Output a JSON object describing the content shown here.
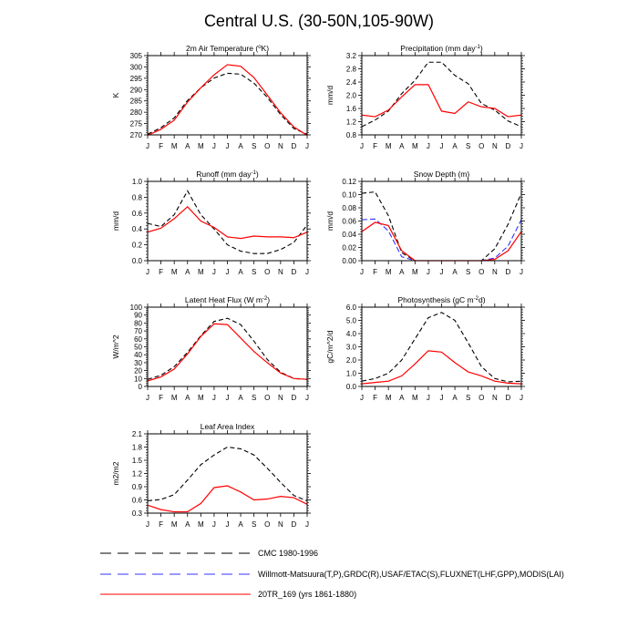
{
  "title": "Central U.S. (30-50N,105-90W)",
  "months": [
    "J",
    "F",
    "M",
    "A",
    "M",
    "J",
    "J",
    "A",
    "S",
    "O",
    "N",
    "D",
    "J"
  ],
  "colors": {
    "cmc": "#000000",
    "obs": "#3333ff",
    "model": "#ff0000"
  },
  "legend": [
    {
      "key": "cmc",
      "label": "CMC 1980-1996"
    },
    {
      "key": "obs",
      "label": "Willmott-Matsuura(T,P),GRDC(R),USAF/ETAC(S),FLUXNET(LHF,GPP),MODIS(LAI)"
    },
    {
      "key": "model",
      "label": "20TR_169 (yrs 1861-1880)"
    }
  ],
  "chart_data": [
    {
      "type": "line",
      "id": "temp",
      "title_main": "2m Air Temperature (",
      "title_sup": "o",
      "title_post": "K)",
      "ylabel": "K",
      "ylim": [
        270,
        305
      ],
      "yticks": [
        "270",
        "275",
        "280",
        "285",
        "290",
        "295",
        "300",
        "305"
      ],
      "series": [
        {
          "key": "cmc",
          "name": "CMC 1980-1996",
          "values": [
            270.3,
            273.2,
            277.5,
            285.2,
            290.8,
            295.1,
            297.2,
            296.8,
            292.8,
            286.6,
            279.0,
            272.8,
            270.3
          ]
        },
        {
          "key": "model",
          "name": "20TR_169 (yrs 1861-1880)",
          "values": [
            269.8,
            272.5,
            276.5,
            284.5,
            290.8,
            296.5,
            301.0,
            300.3,
            295.3,
            287.6,
            279.8,
            273.5,
            269.8
          ]
        }
      ]
    },
    {
      "type": "line",
      "id": "precip",
      "title_main": "Precipitation (mm day",
      "title_sup": "-1",
      "title_post": ")",
      "ylabel": "mm/d",
      "ylim": [
        0.8,
        3.2
      ],
      "yticks": [
        "0.8",
        "1.2",
        "1.6",
        "2.0",
        "2.4",
        "2.8",
        "3.2"
      ],
      "series": [
        {
          "key": "cmc",
          "name": "CMC 1980-1996",
          "values": [
            1.05,
            1.25,
            1.52,
            2.05,
            2.45,
            3.0,
            3.0,
            2.6,
            2.35,
            1.75,
            1.55,
            1.22,
            1.05
          ]
        },
        {
          "key": "model",
          "name": "20TR_169 (yrs 1861-1880)",
          "values": [
            1.4,
            1.35,
            1.55,
            1.95,
            2.32,
            2.32,
            1.52,
            1.45,
            1.8,
            1.65,
            1.6,
            1.35,
            1.4
          ]
        }
      ]
    },
    {
      "type": "line",
      "id": "runoff",
      "title_main": "Runoff (mm day",
      "title_sup": "-1",
      "title_post": ")",
      "ylabel": "mm/d",
      "ylim": [
        0.0,
        1.0
      ],
      "yticks": [
        "0.0",
        "0.2",
        "0.4",
        "0.6",
        "0.8",
        "1.0"
      ],
      "series": [
        {
          "key": "cmc",
          "name": "CMC 1980-1996",
          "values": [
            0.47,
            0.43,
            0.58,
            0.88,
            0.58,
            0.4,
            0.2,
            0.12,
            0.09,
            0.09,
            0.14,
            0.23,
            0.45
          ]
        },
        {
          "key": "model",
          "name": "20TR_169 (yrs 1861-1880)",
          "values": [
            0.36,
            0.41,
            0.53,
            0.68,
            0.5,
            0.42,
            0.3,
            0.28,
            0.31,
            0.3,
            0.3,
            0.29,
            0.36
          ]
        }
      ]
    },
    {
      "type": "line",
      "id": "snow",
      "title_main": "Snow Depth (m)",
      "title_sup": "",
      "title_post": "",
      "ylabel": "mm/d",
      "ylim": [
        0.0,
        0.12
      ],
      "yticks": [
        "0.00",
        "0.02",
        "0.04",
        "0.06",
        "0.08",
        "0.10",
        "0.12"
      ],
      "series": [
        {
          "key": "cmc",
          "name": "CMC 1980-1996",
          "values": [
            0.102,
            0.104,
            0.068,
            0.012,
            0.0,
            0.0,
            0.0,
            0.0,
            0.0,
            0.0,
            0.018,
            0.055,
            0.102
          ]
        },
        {
          "key": "obs",
          "name": "USAF/ETAC",
          "values": [
            0.062,
            0.063,
            0.045,
            0.006,
            0.0,
            0.0,
            0.0,
            0.0,
            0.0,
            0.0,
            0.004,
            0.022,
            0.062
          ]
        },
        {
          "key": "model",
          "name": "20TR_169 (yrs 1861-1880)",
          "values": [
            0.044,
            0.058,
            0.053,
            0.015,
            0.0,
            0.0,
            0.0,
            0.0,
            0.0,
            0.0,
            0.002,
            0.015,
            0.044
          ]
        }
      ]
    },
    {
      "type": "line",
      "id": "lhf",
      "title_main": "Latent Heat Flux (W m",
      "title_sup": "-2",
      "title_post": ")",
      "ylabel": "W/m^2",
      "ylim": [
        0,
        100
      ],
      "yticks": [
        "0",
        "10",
        "20",
        "30",
        "40",
        "50",
        "60",
        "70",
        "80",
        "90",
        "100"
      ],
      "series": [
        {
          "key": "cmc",
          "name": "CMC 1980-1996",
          "values": [
            9,
            14,
            25,
            43,
            64,
            82,
            86,
            78,
            57,
            34,
            18,
            10,
            9
          ]
        },
        {
          "key": "model",
          "name": "20TR_169 (yrs 1861-1880)",
          "values": [
            7,
            12,
            22,
            41,
            63,
            79,
            78,
            61,
            44,
            30,
            17,
            10,
            9
          ]
        }
      ]
    },
    {
      "type": "line",
      "id": "gpp",
      "title_main": "Photosynthesis (gC m",
      "title_sup": "-2",
      "title_post": "d)",
      "ylabel": "gC/m^2/d",
      "ylim": [
        0.0,
        6.0
      ],
      "yticks": [
        "0.0",
        "1.0",
        "2.0",
        "3.0",
        "4.0",
        "5.0",
        "6.0"
      ],
      "series": [
        {
          "key": "cmc",
          "name": "CMC 1980-1996",
          "values": [
            0.4,
            0.6,
            1.0,
            2.0,
            3.6,
            5.2,
            5.6,
            5.0,
            3.3,
            1.5,
            0.6,
            0.35,
            0.4
          ]
        },
        {
          "key": "model",
          "name": "20TR_169 (yrs 1861-1880)",
          "values": [
            0.2,
            0.3,
            0.4,
            0.8,
            1.7,
            2.7,
            2.6,
            1.8,
            1.1,
            0.8,
            0.4,
            0.25,
            0.2
          ]
        }
      ]
    },
    {
      "type": "line",
      "id": "lai",
      "title_main": "Leaf Area Index",
      "title_sup": "",
      "title_post": "",
      "ylabel": "m2/m2",
      "ylim": [
        0.3,
        2.1
      ],
      "yticks": [
        "0.3",
        "0.6",
        "0.9",
        "1.2",
        "1.5",
        "1.8",
        "2.1"
      ],
      "series": [
        {
          "key": "cmc",
          "name": "CMC 1980-1996",
          "values": [
            0.58,
            0.61,
            0.72,
            1.05,
            1.4,
            1.62,
            1.8,
            1.76,
            1.62,
            1.32,
            1.0,
            0.7,
            0.58
          ]
        },
        {
          "key": "model",
          "name": "20TR_169 (yrs 1861-1880)",
          "values": [
            0.48,
            0.38,
            0.33,
            0.33,
            0.52,
            0.88,
            0.92,
            0.78,
            0.6,
            0.62,
            0.68,
            0.65,
            0.5
          ]
        }
      ]
    }
  ]
}
